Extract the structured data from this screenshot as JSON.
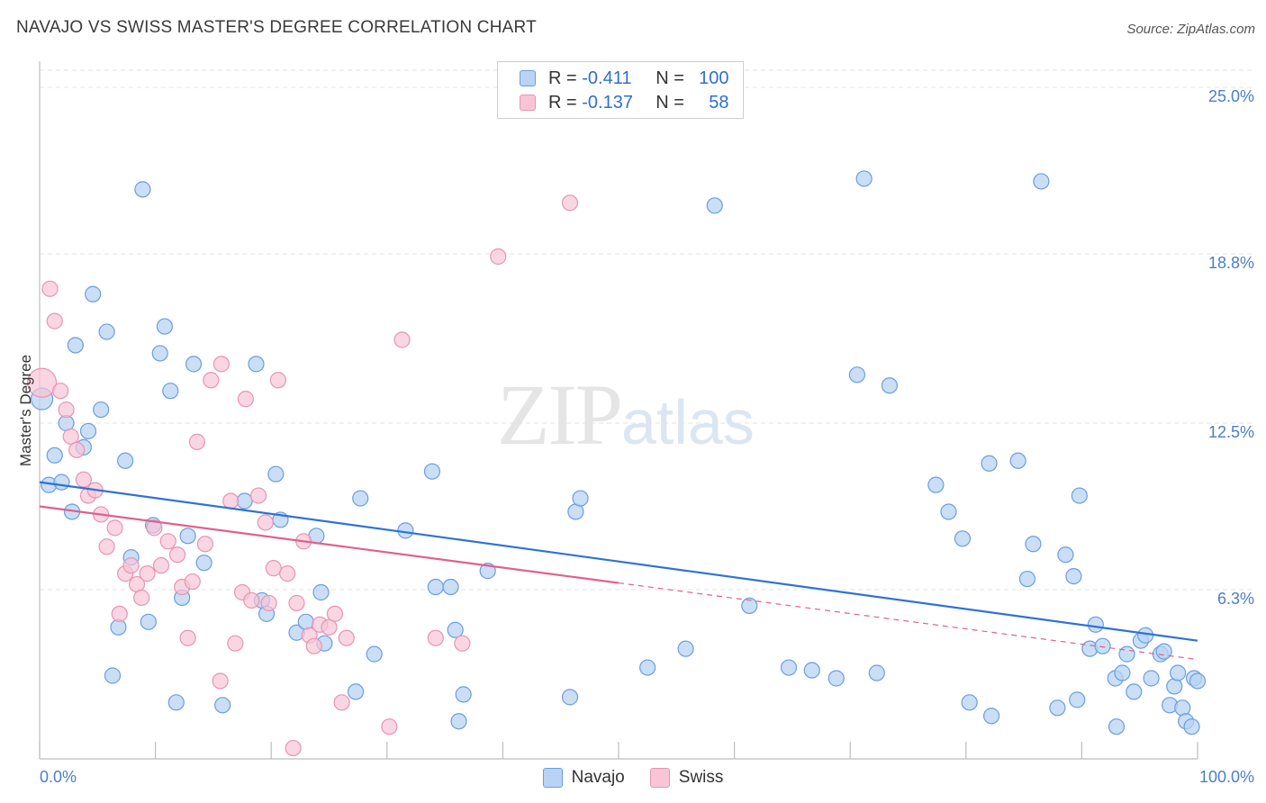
{
  "title": "NAVAJO VS SWISS MASTER'S DEGREE CORRELATION CHART",
  "source": "Source: ZipAtlas.com",
  "watermark": {
    "part1": "ZIP",
    "part2": "atlas"
  },
  "colors": {
    "navajo_fill": "#b8d3f3",
    "navajo_stroke": "#6a9ee0",
    "navajo_line": "#2f72d6",
    "swiss_fill": "#f7c5d6",
    "swiss_stroke": "#e894b2",
    "swiss_line": "#e0608e",
    "tick_text": "#4a7fc9",
    "grid": "#e3e3e3"
  },
  "legend": {
    "navajo": {
      "r_label": "R =",
      "r_value": "-0.411",
      "n_label": "N =",
      "n_value": "100"
    },
    "swiss": {
      "r_label": "R =",
      "r_value": "-0.137",
      "n_label": "N =",
      "n_value": "58"
    }
  },
  "bottom_legend": {
    "navajo": "Navajo",
    "swiss": "Swiss"
  },
  "chart_data": {
    "type": "scatter",
    "title": "NAVAJO VS SWISS MASTER'S DEGREE CORRELATION CHART",
    "xlabel": "",
    "ylabel": "Master's Degree",
    "xlim": [
      0,
      100
    ],
    "ylim": [
      0,
      25.0
    ],
    "x_tick_labels": [
      "0.0%",
      "100.0%"
    ],
    "y_ticks": [
      {
        "value": 6.3,
        "label": "6.3%"
      },
      {
        "value": 12.5,
        "label": "12.5%"
      },
      {
        "value": 18.8,
        "label": "18.8%"
      },
      {
        "value": 25.0,
        "label": "25.0%"
      }
    ],
    "grid": true,
    "legend_position": "top-center",
    "series": [
      {
        "name": "Navajo",
        "trend": {
          "x": [
            0,
            100
          ],
          "y": [
            10.3,
            4.4
          ],
          "solid_to": 100
        },
        "points": [
          [
            0.2,
            13.4
          ],
          [
            0.8,
            10.2
          ],
          [
            1.3,
            11.3
          ],
          [
            1.9,
            10.3
          ],
          [
            2.3,
            12.5
          ],
          [
            2.8,
            9.2
          ],
          [
            3.1,
            15.4
          ],
          [
            3.8,
            11.6
          ],
          [
            4.2,
            12.2
          ],
          [
            4.6,
            17.3
          ],
          [
            5.3,
            13.0
          ],
          [
            5.8,
            15.9
          ],
          [
            6.3,
            3.1
          ],
          [
            6.8,
            4.9
          ],
          [
            7.4,
            11.1
          ],
          [
            7.9,
            7.5
          ],
          [
            8.9,
            21.2
          ],
          [
            9.4,
            5.1
          ],
          [
            9.8,
            8.7
          ],
          [
            10.4,
            15.1
          ],
          [
            10.8,
            16.1
          ],
          [
            11.3,
            13.7
          ],
          [
            11.8,
            2.1
          ],
          [
            12.3,
            6.0
          ],
          [
            12.8,
            8.3
          ],
          [
            13.3,
            14.7
          ],
          [
            14.2,
            7.3
          ],
          [
            15.8,
            2.0
          ],
          [
            17.7,
            9.6
          ],
          [
            18.7,
            14.7
          ],
          [
            19.2,
            5.9
          ],
          [
            19.6,
            5.4
          ],
          [
            20.4,
            10.6
          ],
          [
            20.8,
            8.9
          ],
          [
            22.2,
            4.7
          ],
          [
            23.0,
            5.1
          ],
          [
            23.9,
            8.3
          ],
          [
            24.3,
            6.2
          ],
          [
            24.6,
            4.3
          ],
          [
            27.3,
            2.5
          ],
          [
            27.7,
            9.7
          ],
          [
            28.9,
            3.9
          ],
          [
            31.6,
            8.5
          ],
          [
            33.9,
            10.7
          ],
          [
            34.2,
            6.4
          ],
          [
            35.5,
            6.4
          ],
          [
            35.9,
            4.8
          ],
          [
            36.2,
            1.4
          ],
          [
            36.6,
            2.4
          ],
          [
            38.7,
            7.0
          ],
          [
            45.8,
            2.3
          ],
          [
            46.3,
            9.2
          ],
          [
            46.7,
            9.7
          ],
          [
            52.5,
            3.4
          ],
          [
            55.8,
            4.1
          ],
          [
            58.3,
            20.6
          ],
          [
            61.3,
            5.7
          ],
          [
            64.7,
            3.4
          ],
          [
            66.7,
            3.3
          ],
          [
            68.8,
            3.0
          ],
          [
            70.6,
            14.3
          ],
          [
            71.2,
            21.6
          ],
          [
            72.3,
            3.2
          ],
          [
            73.4,
            13.9
          ],
          [
            77.4,
            10.2
          ],
          [
            78.5,
            9.2
          ],
          [
            79.7,
            8.2
          ],
          [
            80.3,
            2.1
          ],
          [
            82.0,
            11.0
          ],
          [
            82.2,
            1.6
          ],
          [
            84.5,
            11.1
          ],
          [
            85.3,
            6.7
          ],
          [
            85.8,
            8.0
          ],
          [
            86.5,
            21.5
          ],
          [
            87.9,
            1.9
          ],
          [
            88.6,
            7.6
          ],
          [
            89.3,
            6.8
          ],
          [
            89.6,
            2.2
          ],
          [
            89.8,
            9.8
          ],
          [
            90.7,
            4.1
          ],
          [
            91.2,
            5.0
          ],
          [
            91.8,
            4.2
          ],
          [
            92.9,
            3.0
          ],
          [
            93.5,
            3.2
          ],
          [
            93.9,
            3.9
          ],
          [
            94.5,
            2.5
          ],
          [
            95.1,
            4.4
          ],
          [
            95.5,
            4.6
          ],
          [
            96.0,
            3.0
          ],
          [
            96.8,
            3.9
          ],
          [
            97.1,
            4.0
          ],
          [
            97.6,
            2.0
          ],
          [
            98.0,
            2.7
          ],
          [
            98.3,
            3.2
          ],
          [
            98.7,
            1.9
          ],
          [
            99.0,
            1.4
          ],
          [
            99.5,
            1.2
          ],
          [
            99.7,
            3.0
          ],
          [
            100.0,
            2.9
          ],
          [
            93.0,
            1.2
          ]
        ]
      },
      {
        "name": "Swiss",
        "trend": {
          "x": [
            0,
            100
          ],
          "y": [
            9.4,
            3.7
          ],
          "solid_to": 50
        },
        "points": [
          [
            0.2,
            14.0
          ],
          [
            0.9,
            17.5
          ],
          [
            1.3,
            16.3
          ],
          [
            1.8,
            13.7
          ],
          [
            2.3,
            13.0
          ],
          [
            2.7,
            12.0
          ],
          [
            3.2,
            11.5
          ],
          [
            3.8,
            10.4
          ],
          [
            4.2,
            9.8
          ],
          [
            4.8,
            10.0
          ],
          [
            5.3,
            9.1
          ],
          [
            5.8,
            7.9
          ],
          [
            6.5,
            8.6
          ],
          [
            6.9,
            5.4
          ],
          [
            7.4,
            6.9
          ],
          [
            7.9,
            7.2
          ],
          [
            8.4,
            6.5
          ],
          [
            8.8,
            6.0
          ],
          [
            9.3,
            6.9
          ],
          [
            9.9,
            8.6
          ],
          [
            10.5,
            7.2
          ],
          [
            11.1,
            8.1
          ],
          [
            11.9,
            7.6
          ],
          [
            12.3,
            6.4
          ],
          [
            12.8,
            4.5
          ],
          [
            13.2,
            6.6
          ],
          [
            13.6,
            11.8
          ],
          [
            14.3,
            8.0
          ],
          [
            14.8,
            14.1
          ],
          [
            15.6,
            2.9
          ],
          [
            15.7,
            14.7
          ],
          [
            16.5,
            9.6
          ],
          [
            16.9,
            4.3
          ],
          [
            17.5,
            6.2
          ],
          [
            17.8,
            13.4
          ],
          [
            18.3,
            5.9
          ],
          [
            18.9,
            9.8
          ],
          [
            19.5,
            8.8
          ],
          [
            19.8,
            5.8
          ],
          [
            20.2,
            7.1
          ],
          [
            20.6,
            14.1
          ],
          [
            21.4,
            6.9
          ],
          [
            21.9,
            0.4
          ],
          [
            22.2,
            5.8
          ],
          [
            22.8,
            8.1
          ],
          [
            23.3,
            4.6
          ],
          [
            23.7,
            4.2
          ],
          [
            24.2,
            5.0
          ],
          [
            25.0,
            4.9
          ],
          [
            25.5,
            5.4
          ],
          [
            26.1,
            2.1
          ],
          [
            26.5,
            4.5
          ],
          [
            30.2,
            1.2
          ],
          [
            31.3,
            15.6
          ],
          [
            34.2,
            4.5
          ],
          [
            36.5,
            4.3
          ],
          [
            39.6,
            18.7
          ],
          [
            45.8,
            20.7
          ]
        ]
      }
    ]
  }
}
